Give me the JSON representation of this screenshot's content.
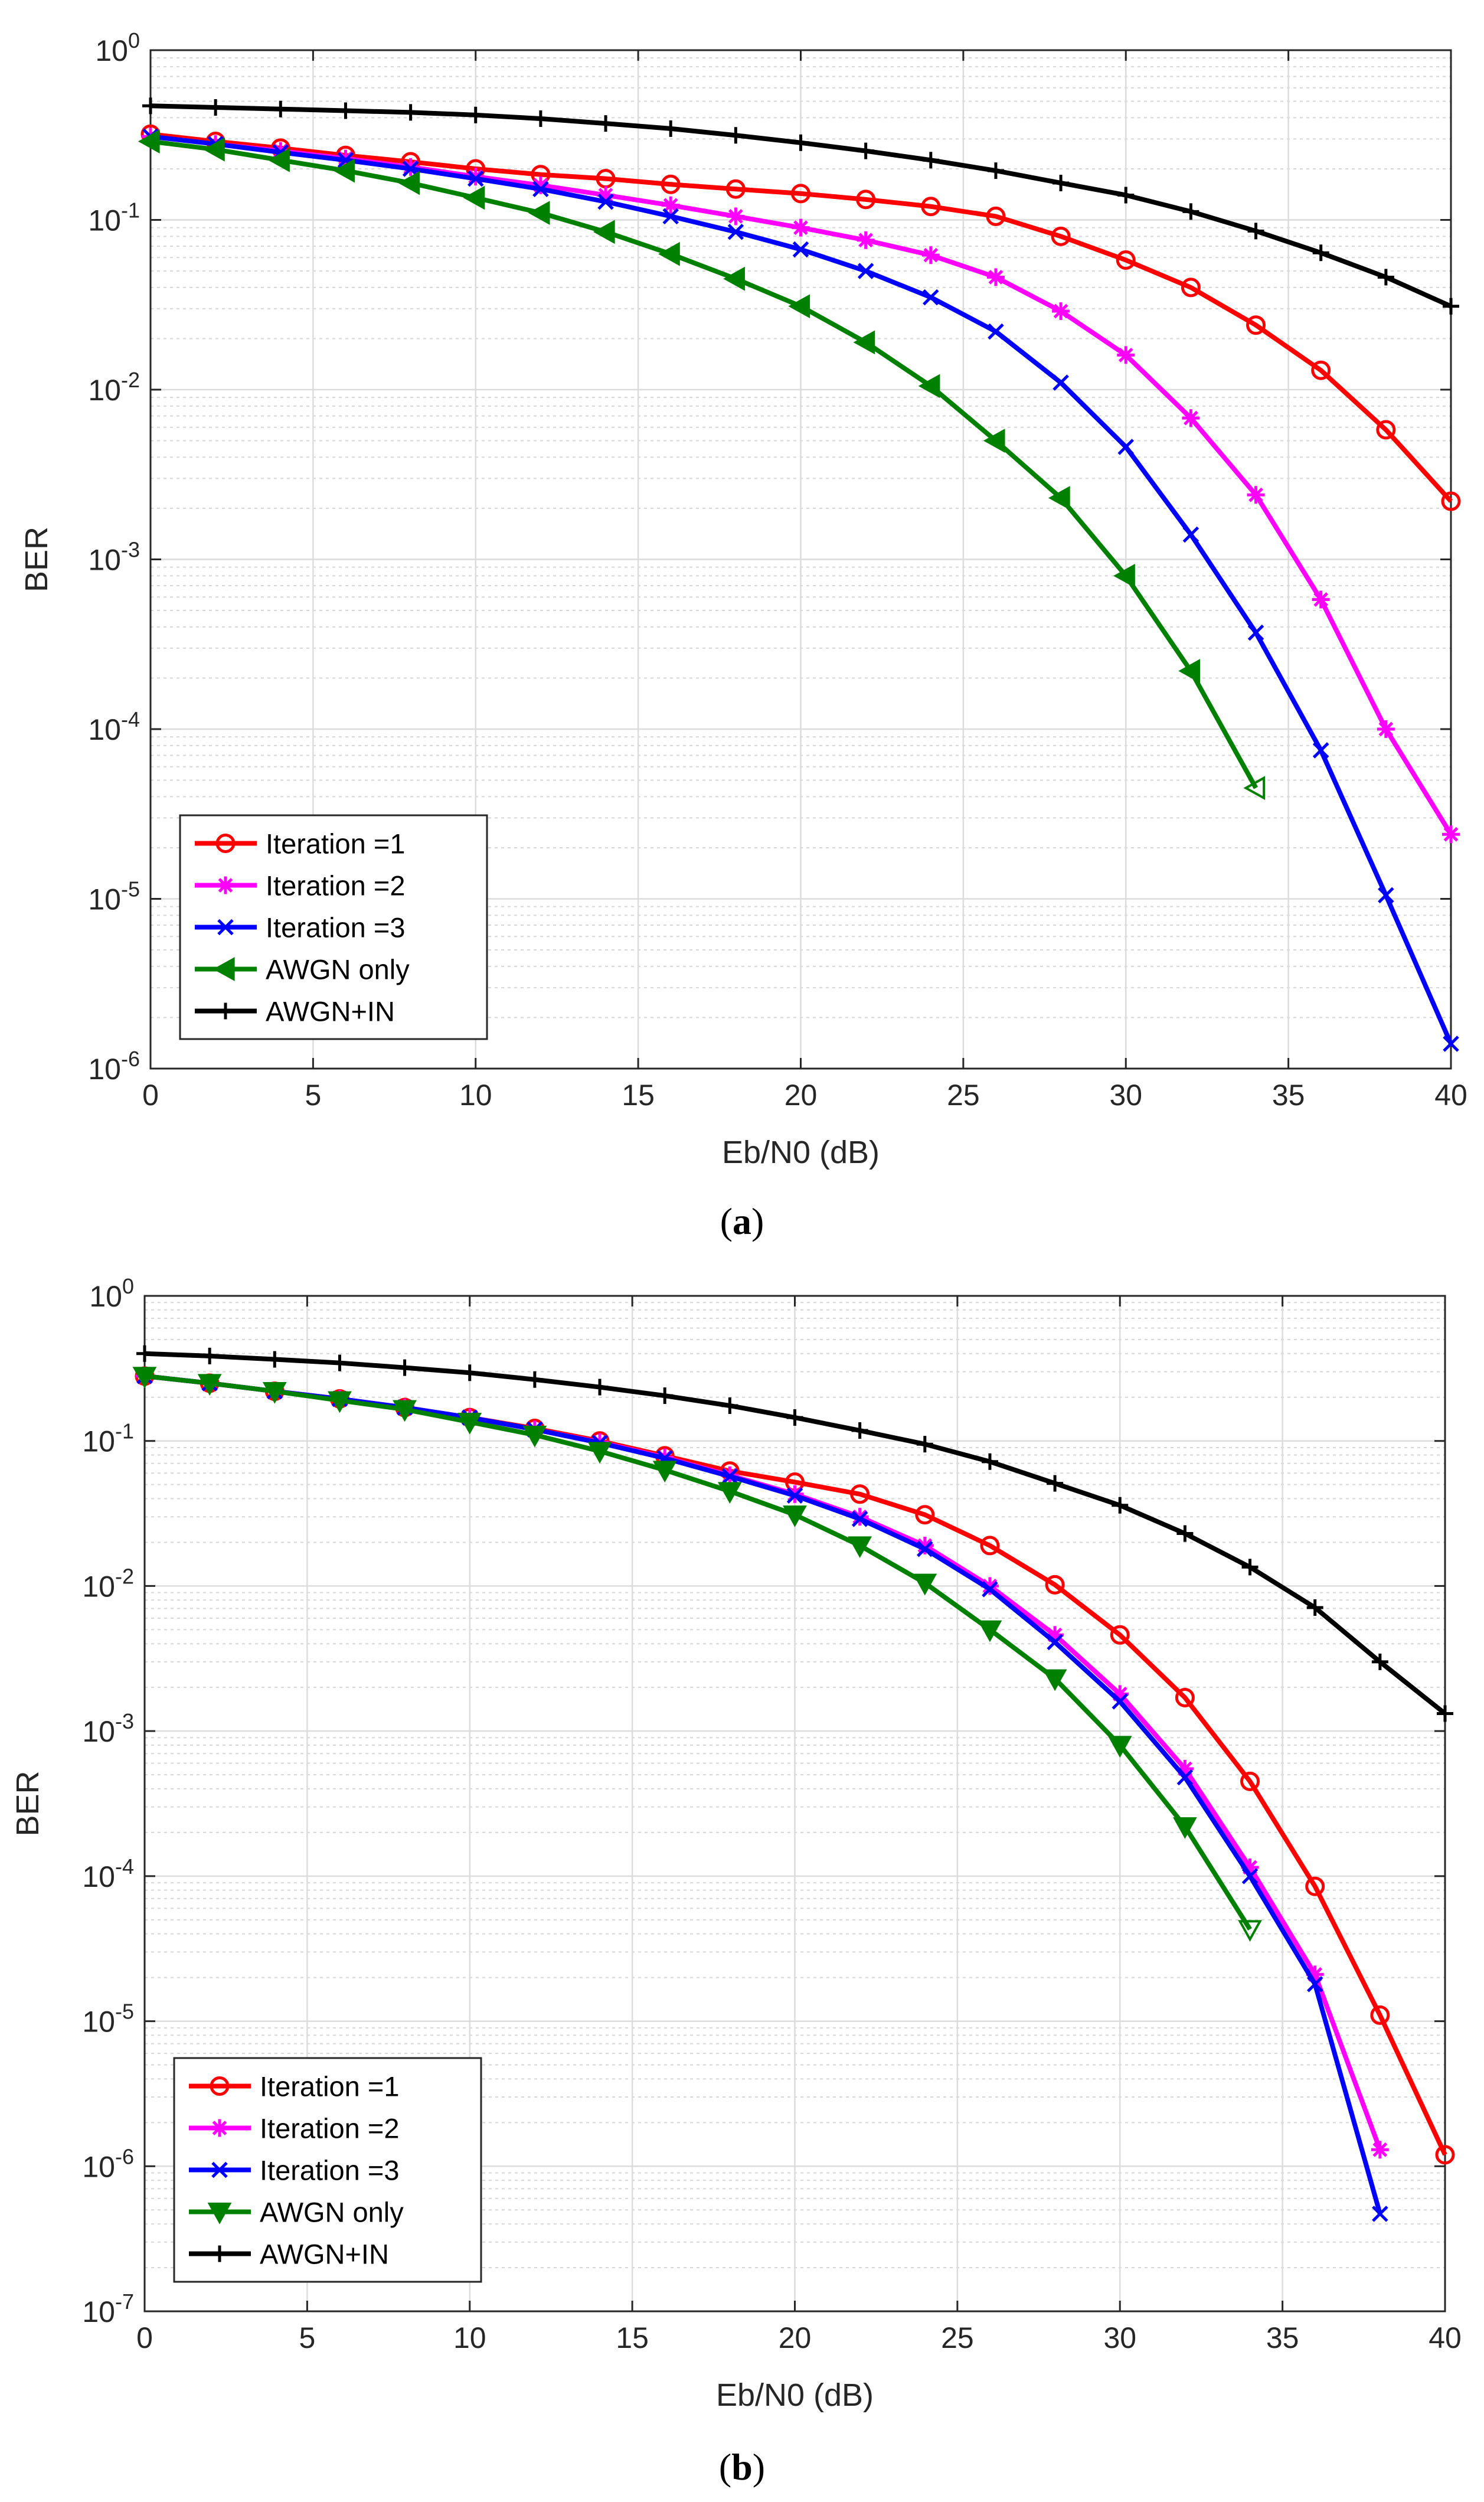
{
  "figure": {
    "panels": [
      {
        "caption_open": "(",
        "caption_label": "a",
        "caption_close": ")"
      },
      {
        "caption_open": "(",
        "caption_label": "b",
        "caption_close": ")"
      }
    ]
  },
  "series_styles": [
    {
      "name": "Iteration =1",
      "color": "#ff0000",
      "marker": "circle-open"
    },
    {
      "name": "Iteration =2",
      "color": "#ff00ff",
      "marker": "asterisk"
    },
    {
      "name": "Iteration =3",
      "color": "#0000ff",
      "marker": "x"
    },
    {
      "name": "AWGN only",
      "color": "#008000",
      "marker": "triangle"
    },
    {
      "name": "AWGN+IN",
      "color": "#000000",
      "marker": "plus"
    }
  ],
  "chart_data": [
    {
      "type": "line",
      "panel": "a",
      "title": "",
      "xlabel": "Eb/N0 (dB)",
      "ylabel": "BER",
      "xlim": [
        0,
        40
      ],
      "ylim": [
        1e-06,
        1
      ],
      "yscale": "log",
      "grid": true,
      "legend_position": "bottom-left",
      "triangle_direction": "left",
      "x_ticks": [
        0,
        5,
        10,
        15,
        20,
        25,
        30,
        35,
        40
      ],
      "y_tick_exponents": [
        0,
        -1,
        -2,
        -3,
        -4,
        -5,
        -6
      ],
      "series": [
        {
          "name": "Iteration =1",
          "x": [
            0,
            2,
            4,
            6,
            8,
            10,
            12,
            14,
            16,
            18,
            20,
            22,
            24,
            26,
            28,
            30,
            32,
            34,
            36,
            38,
            40
          ],
          "values": [
            0.32,
            0.29,
            0.265,
            0.24,
            0.22,
            0.2,
            0.185,
            0.175,
            0.162,
            0.152,
            0.143,
            0.132,
            0.12,
            0.105,
            0.08,
            0.058,
            0.04,
            0.024,
            0.013,
            0.0058,
            0.0022
          ]
        },
        {
          "name": "Iteration =2",
          "x": [
            0,
            2,
            4,
            6,
            8,
            10,
            12,
            14,
            16,
            18,
            20,
            22,
            24,
            26,
            28,
            30,
            32,
            34,
            36,
            38,
            40
          ],
          "values": [
            0.31,
            0.28,
            0.255,
            0.23,
            0.205,
            0.18,
            0.16,
            0.14,
            0.122,
            0.105,
            0.09,
            0.076,
            0.062,
            0.046,
            0.029,
            0.016,
            0.0068,
            0.0024,
            0.00058,
            0.0001,
            2.4e-05
          ]
        },
        {
          "name": "Iteration =3",
          "x": [
            0,
            2,
            4,
            6,
            8,
            10,
            12,
            14,
            16,
            18,
            20,
            22,
            24,
            26,
            28,
            30,
            32,
            34,
            36,
            38,
            40
          ],
          "values": [
            0.31,
            0.28,
            0.25,
            0.225,
            0.2,
            0.175,
            0.152,
            0.128,
            0.105,
            0.085,
            0.067,
            0.05,
            0.035,
            0.022,
            0.011,
            0.0046,
            0.0014,
            0.00037,
            7.5e-05,
            1.05e-05,
            1.4e-06
          ]
        },
        {
          "name": "AWGN only",
          "x": [
            0,
            2,
            4,
            6,
            8,
            10,
            12,
            14,
            16,
            18,
            20,
            22,
            24,
            26,
            28,
            30,
            32,
            34
          ],
          "values": [
            0.29,
            0.26,
            0.225,
            0.195,
            0.165,
            0.135,
            0.11,
            0.085,
            0.063,
            0.045,
            0.031,
            0.019,
            0.0105,
            0.005,
            0.0023,
            0.0008,
            0.00022,
            4.5e-05
          ]
        },
        {
          "name": "AWGN+IN",
          "x": [
            0,
            2,
            4,
            6,
            8,
            10,
            12,
            14,
            16,
            18,
            20,
            22,
            24,
            26,
            28,
            30,
            32,
            34,
            36,
            38,
            40
          ],
          "values": [
            0.47,
            0.46,
            0.45,
            0.44,
            0.43,
            0.415,
            0.395,
            0.37,
            0.345,
            0.315,
            0.285,
            0.255,
            0.225,
            0.195,
            0.165,
            0.14,
            0.112,
            0.086,
            0.064,
            0.046,
            0.031
          ]
        }
      ]
    },
    {
      "type": "line",
      "panel": "b",
      "title": "",
      "xlabel": "Eb/N0 (dB)",
      "ylabel": "BER",
      "xlim": [
        0,
        40
      ],
      "ylim": [
        1e-07,
        1
      ],
      "yscale": "log",
      "grid": true,
      "legend_position": "bottom-left",
      "triangle_direction": "down",
      "x_ticks": [
        0,
        5,
        10,
        15,
        20,
        25,
        30,
        35,
        40
      ],
      "y_tick_exponents": [
        0,
        -1,
        -2,
        -3,
        -4,
        -5,
        -6,
        -7
      ],
      "series": [
        {
          "name": "Iteration =1",
          "x": [
            0,
            2,
            4,
            6,
            8,
            10,
            12,
            14,
            16,
            18,
            20,
            22,
            24,
            26,
            28,
            30,
            32,
            34,
            36,
            38,
            40
          ],
          "values": [
            0.28,
            0.25,
            0.22,
            0.195,
            0.17,
            0.145,
            0.122,
            0.1,
            0.079,
            0.062,
            0.052,
            0.043,
            0.031,
            0.019,
            0.0102,
            0.0046,
            0.0017,
            0.00045,
            8.5e-05,
            1.1e-05,
            1.2e-06
          ]
        },
        {
          "name": "Iteration =2",
          "x": [
            0,
            2,
            4,
            6,
            8,
            10,
            12,
            14,
            16,
            18,
            20,
            22,
            24,
            26,
            28,
            30,
            32,
            34,
            36,
            38
          ],
          "values": [
            0.28,
            0.25,
            0.22,
            0.195,
            0.17,
            0.145,
            0.12,
            0.098,
            0.077,
            0.058,
            0.043,
            0.03,
            0.019,
            0.01,
            0.0046,
            0.0018,
            0.00055,
            0.000115,
            2.1e-05,
            1.3e-06
          ]
        },
        {
          "name": "Iteration =3",
          "x": [
            0,
            2,
            4,
            6,
            8,
            10,
            12,
            14,
            16,
            18,
            20,
            22,
            24,
            26,
            28,
            30,
            32,
            34,
            36,
            38
          ],
          "values": [
            0.28,
            0.25,
            0.22,
            0.195,
            0.17,
            0.145,
            0.12,
            0.097,
            0.076,
            0.057,
            0.042,
            0.029,
            0.018,
            0.0095,
            0.0041,
            0.0016,
            0.00048,
            0.0001,
            1.8e-05,
            4.7e-07
          ]
        },
        {
          "name": "AWGN only",
          "x": [
            0,
            2,
            4,
            6,
            8,
            10,
            12,
            14,
            16,
            18,
            20,
            22,
            24,
            26,
            28,
            30,
            32,
            34
          ],
          "values": [
            0.28,
            0.25,
            0.22,
            0.19,
            0.165,
            0.135,
            0.11,
            0.085,
            0.063,
            0.045,
            0.031,
            0.019,
            0.0105,
            0.005,
            0.0023,
            0.0008,
            0.00022,
            4.3e-05
          ]
        },
        {
          "name": "AWGN+IN",
          "x": [
            0,
            2,
            4,
            6,
            8,
            10,
            12,
            14,
            16,
            18,
            20,
            22,
            24,
            26,
            28,
            30,
            32,
            34,
            36,
            38,
            40
          ],
          "values": [
            0.4,
            0.385,
            0.365,
            0.345,
            0.32,
            0.295,
            0.265,
            0.235,
            0.205,
            0.175,
            0.145,
            0.118,
            0.095,
            0.072,
            0.051,
            0.036,
            0.023,
            0.0135,
            0.0071,
            0.003,
            0.00132
          ]
        }
      ]
    }
  ]
}
